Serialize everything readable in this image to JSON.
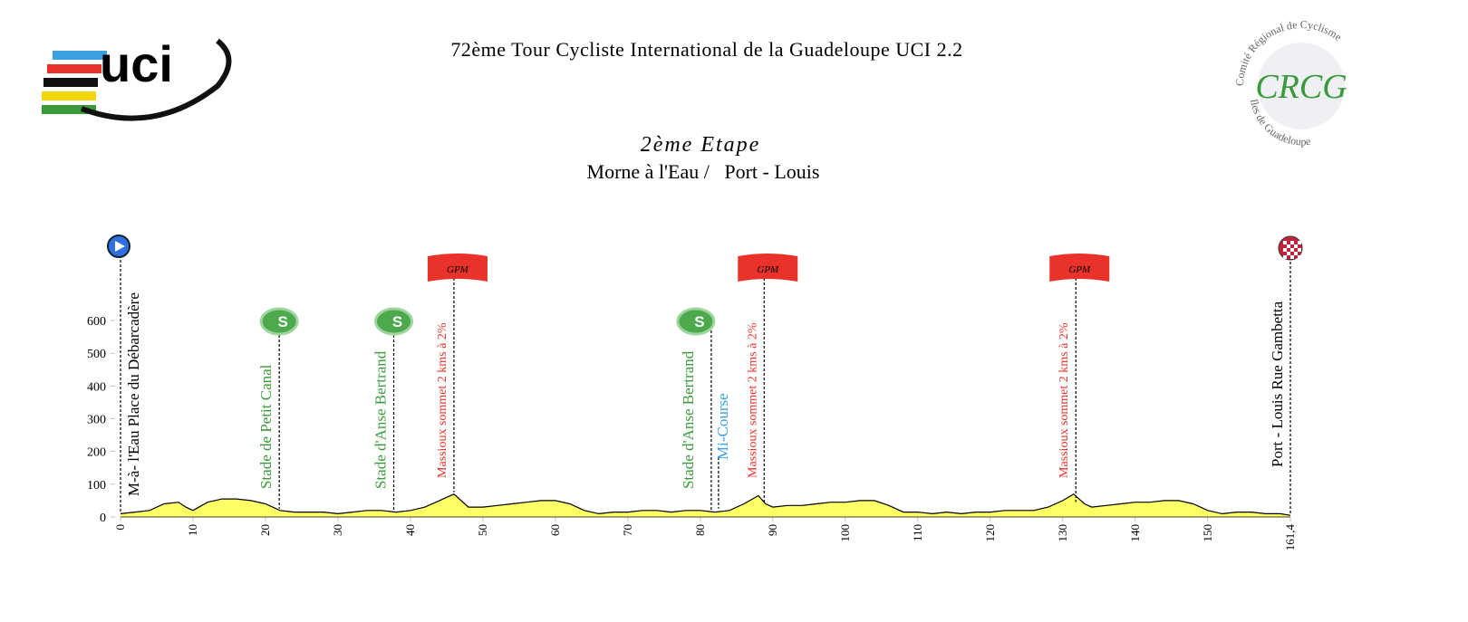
{
  "header": {
    "title": "72ème Tour Cycliste International de la Guadeloupe UCI 2.2",
    "left_logo": "uci",
    "right_logo_top": "Comité Régional de Cyclisme",
    "right_logo_bottom": "Iles de Guadeloupe",
    "right_logo_letters": "CRCG"
  },
  "chart_data": {
    "type": "area",
    "title": "2ème Etape",
    "subtitle": "Morne à l'Eau /   Port - Louis",
    "color": "#ffff66",
    "line_color": "#000000",
    "x": [
      0,
      2,
      4,
      6,
      8,
      9,
      10,
      12,
      14,
      16,
      18,
      20,
      22,
      24,
      26,
      28,
      30,
      32,
      34,
      36,
      38,
      40,
      42,
      44,
      46,
      47,
      48,
      50,
      52,
      54,
      56,
      58,
      60,
      62,
      64,
      66,
      68,
      70,
      72,
      74,
      76,
      78,
      80,
      82,
      84,
      86,
      88,
      89,
      90,
      92,
      94,
      96,
      98,
      100,
      102,
      104,
      106,
      108,
      110,
      112,
      114,
      116,
      118,
      120,
      122,
      124,
      126,
      128,
      130,
      131.5,
      133,
      134,
      136,
      138,
      140,
      142,
      144,
      146,
      148,
      150,
      152,
      154,
      156,
      158,
      160,
      161.4
    ],
    "values": [
      10,
      15,
      20,
      40,
      45,
      30,
      20,
      45,
      55,
      55,
      50,
      40,
      20,
      15,
      15,
      15,
      10,
      15,
      20,
      20,
      15,
      20,
      30,
      50,
      70,
      50,
      30,
      30,
      35,
      40,
      45,
      50,
      50,
      40,
      20,
      10,
      15,
      15,
      20,
      20,
      15,
      20,
      20,
      15,
      20,
      40,
      65,
      40,
      30,
      35,
      35,
      40,
      45,
      45,
      50,
      50,
      35,
      15,
      15,
      10,
      15,
      10,
      15,
      15,
      20,
      20,
      20,
      30,
      50,
      70,
      40,
      30,
      35,
      40,
      45,
      45,
      50,
      50,
      40,
      20,
      10,
      15,
      15,
      10,
      10,
      5
    ],
    "xlim": [
      0,
      161.4
    ],
    "ylim": [
      0,
      600
    ],
    "xticks": [
      0,
      10,
      20,
      30,
      40,
      50,
      60,
      70,
      80,
      90,
      100,
      110,
      120,
      130,
      140,
      150,
      {
        "value": 161.4,
        "label": "161,4"
      }
    ],
    "yticks": [
      0,
      100,
      200,
      300,
      400,
      500,
      600
    ],
    "flag_text": "GPM",
    "sprint_text": "S",
    "annotations": [
      {
        "x": 0,
        "label": "M-à- l'Eau Place du Débarcadère",
        "kind": "start",
        "color": "#000000"
      },
      {
        "x": 21.9,
        "label": "Stade de Petit Canal",
        "kind": "sprint",
        "color": "#3a9a3a"
      },
      {
        "x": 37.7,
        "label": "Stade d'Anse Bertrand",
        "kind": "sprint",
        "color": "#3a9a3a"
      },
      {
        "x": 46,
        "label": "Massioux sommet 2 kms à 2%",
        "kind": "gpm",
        "color": "#e8322a"
      },
      {
        "x": 81.5,
        "label": "Stade d'Anse Bertrand",
        "kind": "sprint",
        "color": "#3a9a3a"
      },
      {
        "x": 82.5,
        "label": "Mi-Course",
        "kind": "intermediate",
        "color": "#3aa0e0"
      },
      {
        "x": 88.8,
        "label": "Massioux sommet 2 kms à 2%",
        "kind": "gpm",
        "color": "#e8322a"
      },
      {
        "x": 131.8,
        "label": "Massioux sommet 2 kms à 2%",
        "kind": "gpm",
        "color": "#e8322a"
      },
      {
        "x": 161.4,
        "label": "Port - Louis Rue Gambetta",
        "kind": "finish",
        "color": "#000000"
      }
    ]
  }
}
